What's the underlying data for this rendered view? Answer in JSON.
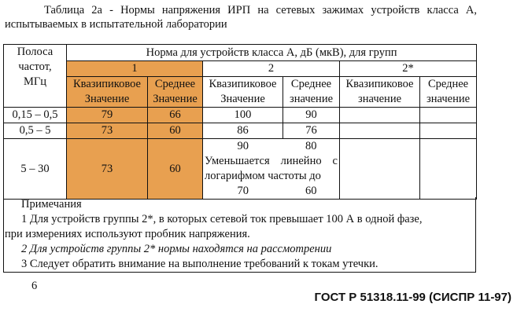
{
  "title": {
    "line1": "Таблица 2а - Нормы напряжения ИРП на сетевых зажимах устройств класса А,",
    "line2": "испытываемых в испытательной лаборатории"
  },
  "colors": {
    "group1_fill": "#E8A050"
  },
  "table": {
    "band_header": [
      "Полоса",
      "частот,",
      "МГц"
    ],
    "norm_header": "Норма для устройств класса А, дБ (мкВ), для групп",
    "groups": [
      "1",
      "2",
      "2*"
    ],
    "subheaders": [
      [
        "Квазипиковое",
        "Значение"
      ],
      [
        "Среднее",
        "Значение"
      ],
      [
        "Квазипиковое",
        "Значение"
      ],
      [
        "Среднее",
        "значение"
      ],
      [
        "Квазипиковое",
        "значение"
      ],
      [
        "Среднее",
        "значение"
      ]
    ],
    "rows": [
      {
        "band": "0,15 – 0,5",
        "g1q": "79",
        "g1a": "66",
        "g2q": "100",
        "g2a": "90"
      },
      {
        "band": "0,5 – 5",
        "g1q": "73",
        "g1a": "60",
        "g2q": "86",
        "g2a": "76"
      },
      {
        "band": "5 – 30",
        "g1q": "73",
        "g1a": "60",
        "g2q_start": "90",
        "g2a_start": "80",
        "g2_text1": "Уменьшается линейно с",
        "g2_text2": "логарифмом частоты до",
        "g2q_end": "70",
        "g2a_end": "60"
      }
    ]
  },
  "notes": {
    "heading": "Примечания",
    "n1a": "1 Для устройств группы 2*, в которых сетевой ток превышает 100 А в одной фазе,",
    "n1b": "при измерениях используют пробник напряжения.",
    "n2": "2 Для устройств группы 2* нормы находятся на рассмотрении",
    "n3": "3 Следует обратить внимание на выполнение требований к токам утечки."
  },
  "footer": {
    "page": "6",
    "standard": "ГОСТ Р 51318.11-99 (СИСПР 11-97)"
  }
}
